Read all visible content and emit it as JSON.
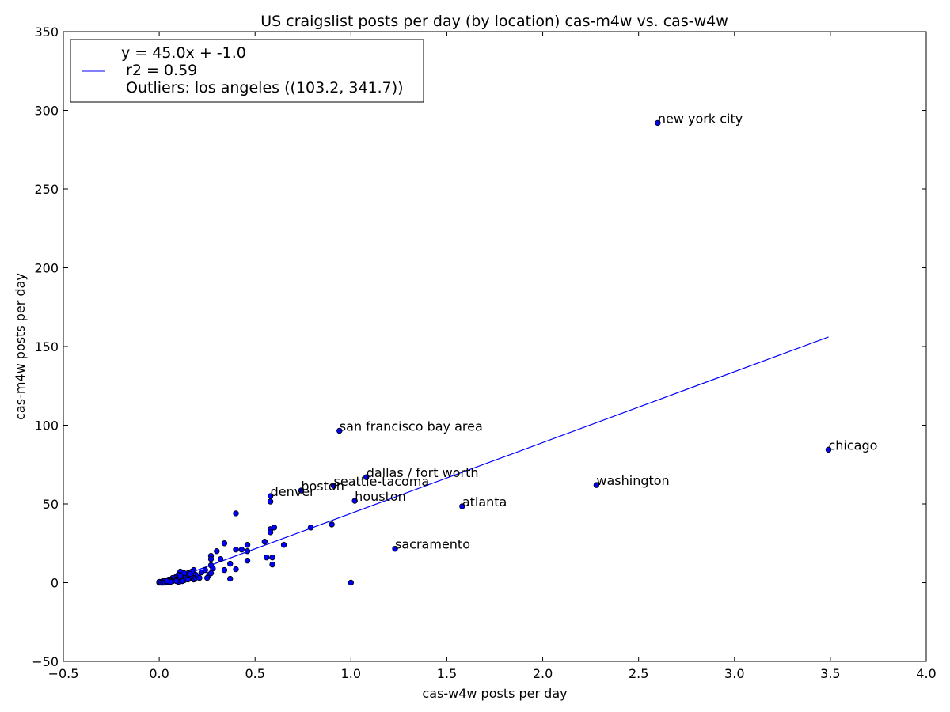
{
  "chart_data": {
    "type": "scatter",
    "title": "US craigslist posts per day (by location) cas-m4w vs. cas-w4w",
    "xlabel": "cas-w4w posts per day",
    "ylabel": "cas-m4w posts per day",
    "xlim": [
      -0.5,
      4.0
    ],
    "ylim": [
      -50,
      350
    ],
    "xticks": [
      -0.5,
      0.0,
      0.5,
      1.0,
      1.5,
      2.0,
      2.5,
      3.0,
      3.5,
      4.0
    ],
    "xtick_labels": [
      "−0.5",
      "0.0",
      "0.5",
      "1.0",
      "1.5",
      "2.0",
      "2.5",
      "3.0",
      "3.5",
      "4.0"
    ],
    "yticks": [
      -50,
      0,
      50,
      100,
      150,
      200,
      250,
      300,
      350
    ],
    "ytick_labels": [
      "−50",
      "0",
      "50",
      "100",
      "150",
      "200",
      "250",
      "300",
      "350"
    ],
    "grid": false,
    "legend_placement": "top-left",
    "legend_entries": [
      "y = 45.0x + -1.0",
      " r2 = 0.59",
      " Outliers: los angeles ((103.2, 341.7))"
    ],
    "point_color": "#0000ff",
    "line_color": "#0000ff",
    "fit_line": {
      "slope": 45.0,
      "intercept": -1.0,
      "x_range": [
        0.0,
        3.49
      ]
    },
    "points": [
      {
        "x": 2.6,
        "y": 292,
        "label": "new york city"
      },
      {
        "x": 3.49,
        "y": 84.5,
        "label": "chicago"
      },
      {
        "x": 0.94,
        "y": 96.5,
        "label": "san francisco bay area"
      },
      {
        "x": 1.08,
        "y": 67,
        "label": "dallas / fort worth"
      },
      {
        "x": 0.91,
        "y": 61.5,
        "label": "seattle-tacoma"
      },
      {
        "x": 0.74,
        "y": 58.5,
        "label": "boston"
      },
      {
        "x": 0.58,
        "y": 55,
        "label": "denver"
      },
      {
        "x": 1.02,
        "y": 52,
        "label": "houston"
      },
      {
        "x": 2.28,
        "y": 62,
        "label": "washington"
      },
      {
        "x": 1.58,
        "y": 48.5,
        "label": "atlanta"
      },
      {
        "x": 1.23,
        "y": 21.5,
        "label": "sacramento"
      },
      {
        "x": 0.58,
        "y": 51.5
      },
      {
        "x": 0.4,
        "y": 44
      },
      {
        "x": 0.58,
        "y": 34
      },
      {
        "x": 0.6,
        "y": 35
      },
      {
        "x": 0.58,
        "y": 32
      },
      {
        "x": 0.79,
        "y": 35
      },
      {
        "x": 0.9,
        "y": 37
      },
      {
        "x": 0.55,
        "y": 26
      },
      {
        "x": 0.65,
        "y": 24
      },
      {
        "x": 0.34,
        "y": 25
      },
      {
        "x": 0.46,
        "y": 24
      },
      {
        "x": 0.4,
        "y": 21
      },
      {
        "x": 0.43,
        "y": 21
      },
      {
        "x": 0.46,
        "y": 20
      },
      {
        "x": 0.3,
        "y": 20
      },
      {
        "x": 0.27,
        "y": 17
      },
      {
        "x": 0.27,
        "y": 15
      },
      {
        "x": 0.32,
        "y": 15
      },
      {
        "x": 0.56,
        "y": 16
      },
      {
        "x": 0.59,
        "y": 16
      },
      {
        "x": 0.46,
        "y": 14
      },
      {
        "x": 0.37,
        "y": 12
      },
      {
        "x": 0.59,
        "y": 11.5
      },
      {
        "x": 0.27,
        "y": 11
      },
      {
        "x": 0.28,
        "y": 9
      },
      {
        "x": 0.4,
        "y": 8.5
      },
      {
        "x": 0.34,
        "y": 8
      },
      {
        "x": 0.24,
        "y": 8
      },
      {
        "x": 0.22,
        "y": 6.5
      },
      {
        "x": 0.26,
        "y": 5
      },
      {
        "x": 0.27,
        "y": 6
      },
      {
        "x": 0.37,
        "y": 2.5
      },
      {
        "x": 0.25,
        "y": 3
      },
      {
        "x": 1.0,
        "y": 0
      },
      {
        "x": 0.18,
        "y": 8
      },
      {
        "x": 0.17,
        "y": 7
      },
      {
        "x": 0.19,
        "y": 5
      },
      {
        "x": 0.15,
        "y": 6
      },
      {
        "x": 0.14,
        "y": 5
      },
      {
        "x": 0.12,
        "y": 6.5
      },
      {
        "x": 0.11,
        "y": 7
      },
      {
        "x": 0.1,
        "y": 5
      },
      {
        "x": 0.09,
        "y": 4
      },
      {
        "x": 0.08,
        "y": 3
      },
      {
        "x": 0.07,
        "y": 3
      },
      {
        "x": 0.06,
        "y": 2
      },
      {
        "x": 0.05,
        "y": 2
      },
      {
        "x": 0.04,
        "y": 1.5
      },
      {
        "x": 0.03,
        "y": 1
      },
      {
        "x": 0.02,
        "y": 1
      },
      {
        "x": 0.01,
        "y": 0.5
      },
      {
        "x": 0.0,
        "y": 0
      },
      {
        "x": 0.0,
        "y": 0.5
      },
      {
        "x": 0.01,
        "y": 0
      },
      {
        "x": 0.02,
        "y": 0
      },
      {
        "x": 0.03,
        "y": 0
      },
      {
        "x": 0.04,
        "y": 0.5
      },
      {
        "x": 0.05,
        "y": 0.5
      },
      {
        "x": 0.06,
        "y": 1
      },
      {
        "x": 0.07,
        "y": 1
      },
      {
        "x": 0.08,
        "y": 1.5
      },
      {
        "x": 0.09,
        "y": 2
      },
      {
        "x": 0.1,
        "y": 2
      },
      {
        "x": 0.11,
        "y": 3
      },
      {
        "x": 0.12,
        "y": 3
      },
      {
        "x": 0.13,
        "y": 4
      },
      {
        "x": 0.14,
        "y": 3.5
      },
      {
        "x": 0.15,
        "y": 3
      },
      {
        "x": 0.16,
        "y": 4
      },
      {
        "x": 0.17,
        "y": 3
      },
      {
        "x": 0.18,
        "y": 2
      },
      {
        "x": 0.19,
        "y": 3
      },
      {
        "x": 0.2,
        "y": 4
      },
      {
        "x": 0.21,
        "y": 3
      },
      {
        "x": 0.13,
        "y": 1.5
      },
      {
        "x": 0.1,
        "y": 0.5
      },
      {
        "x": 0.06,
        "y": 0.5
      },
      {
        "x": 0.04,
        "y": 1
      },
      {
        "x": 0.15,
        "y": 2
      },
      {
        "x": 0.12,
        "y": 1
      },
      {
        "x": 0.09,
        "y": 1
      },
      {
        "x": 0.16,
        "y": 5.5
      },
      {
        "x": 0.13,
        "y": 6
      },
      {
        "x": 0.11,
        "y": 4.5
      }
    ]
  }
}
